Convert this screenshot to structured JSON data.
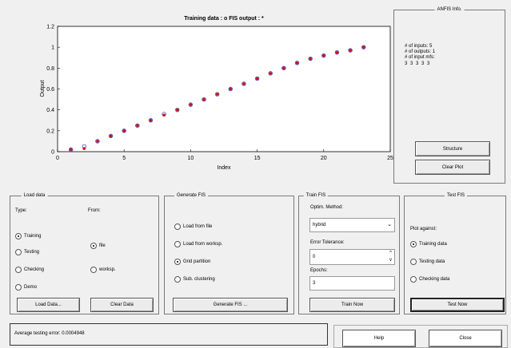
{
  "chart_data": {
    "type": "scatter",
    "title": "Training data : o   FIS output : *",
    "xlabel": "Index",
    "ylabel": "Output",
    "xlim": [
      0,
      25
    ],
    "ylim": [
      0,
      1.2
    ],
    "xticks": [
      "0",
      "5",
      "10",
      "15",
      "20",
      "25"
    ],
    "yticks": [
      "0",
      "0.2",
      "0.4",
      "0.6",
      "0.8",
      "1",
      "1.2"
    ],
    "grid": false,
    "x": [
      1,
      2,
      3,
      4,
      5,
      6,
      7,
      8,
      9,
      10,
      11,
      12,
      13,
      14,
      15,
      16,
      17,
      18,
      19,
      20,
      21,
      22,
      23
    ],
    "series": [
      {
        "marker": "o",
        "color": "#4040c0",
        "values": [
          0.02,
          0.05,
          0.1,
          0.15,
          0.2,
          0.25,
          0.3,
          0.36,
          0.4,
          0.45,
          0.5,
          0.55,
          0.6,
          0.65,
          0.7,
          0.75,
          0.8,
          0.85,
          0.89,
          0.92,
          0.95,
          0.97,
          1.0
        ]
      },
      {
        "marker": "*",
        "color": "#cc1111",
        "values": [
          0.02,
          0.03,
          0.1,
          0.15,
          0.2,
          0.25,
          0.3,
          0.35,
          0.4,
          0.45,
          0.5,
          0.55,
          0.6,
          0.65,
          0.7,
          0.75,
          0.8,
          0.85,
          0.89,
          0.92,
          0.95,
          0.97,
          1.0
        ]
      }
    ]
  },
  "anfis_info": {
    "title": "ANFIS Info.",
    "inputs": "# of inputs: 5",
    "outputs": "# of outputs: 1",
    "input_mfs": "# of input mfs:",
    "mfs_values": "3 3 3 3 3",
    "structure_label": "Structure",
    "clear_plot_label": "Clear Plot"
  },
  "load_data": {
    "title": "Load data",
    "type_label": "Type:",
    "from_label": "From:",
    "types": [
      "Training",
      "Testing",
      "Checking",
      "Demo"
    ],
    "selected_type": "Training",
    "sources": [
      "file",
      "worksp."
    ],
    "selected_source": "file",
    "load_button": "Load Data...",
    "clear_button": "Clear Data"
  },
  "generate_fis": {
    "title": "Generate FIS",
    "options": [
      "Load from file",
      "Load from worksp.",
      "Grid partition",
      "Sub. clustering"
    ],
    "selected": "Grid partition",
    "button": "Generate FIS ..."
  },
  "train_fis": {
    "title": "Train FIS",
    "method_label": "Optim. Method:",
    "method_value": "hybrid",
    "tolerance_label": "Error Tolerance:",
    "tolerance_value": "0",
    "epochs_label": "Epochs:",
    "epochs_value": "3",
    "button": "Train Now"
  },
  "test_fis": {
    "title": "Test FIS",
    "plot_against_label": "Plot against:",
    "options": [
      "Training data",
      "Testing data",
      "Checking data"
    ],
    "selected": "Training data",
    "button": "Test Now"
  },
  "status": {
    "message": "Average testing error: 0.0004948"
  },
  "footer": {
    "help_label": "Help",
    "close_label": "Close"
  }
}
